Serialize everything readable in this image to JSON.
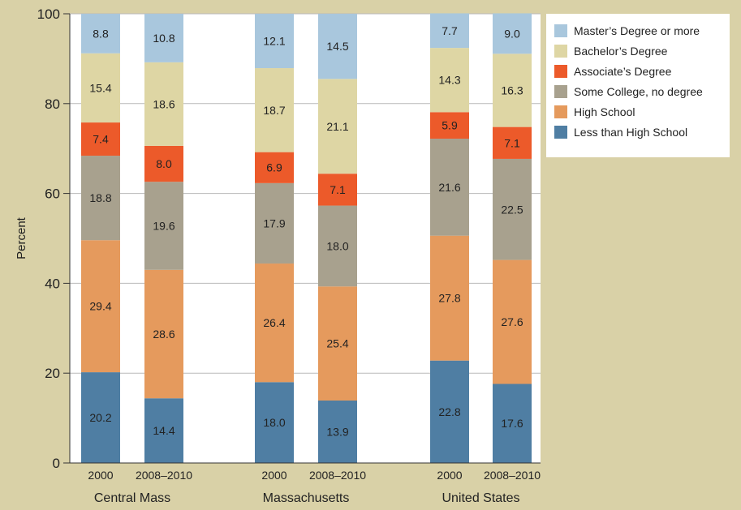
{
  "chart_data": {
    "type": "bar",
    "stacked": true,
    "ylabel": "Percent",
    "ylim": [
      0,
      100
    ],
    "yticks": [
      "0",
      "20",
      "40",
      "60",
      "80",
      "100"
    ],
    "grid": true,
    "legend_position": "top-right",
    "groups": [
      "Central Mass",
      "Massachusetts",
      "United States"
    ],
    "categories": [
      "2000",
      "2008–2010",
      "2000",
      "2008–2010",
      "2000",
      "2008–2010"
    ],
    "category_group": [
      0,
      0,
      1,
      1,
      2,
      2
    ],
    "series": [
      {
        "name": "Less than High School",
        "color": "#4f7ea3",
        "values": [
          20.2,
          14.4,
          18.0,
          13.9,
          22.8,
          17.6
        ],
        "labels": [
          "20.2",
          "14.4",
          "18.0",
          "13.9",
          "22.8",
          "17.6"
        ]
      },
      {
        "name": "High School",
        "color": "#e59a5d",
        "values": [
          29.4,
          28.6,
          26.4,
          25.4,
          27.8,
          27.6
        ],
        "labels": [
          "29.4",
          "28.6",
          "26.4",
          "25.4",
          "27.8",
          "27.6"
        ]
      },
      {
        "name": "Some College, no degree",
        "color": "#a8a18e",
        "values": [
          18.8,
          19.6,
          17.9,
          18.0,
          21.6,
          22.5
        ],
        "labels": [
          "18.8",
          "19.6",
          "17.9",
          "18.0",
          "21.6",
          "22.5"
        ]
      },
      {
        "name": "Associate’s Degree",
        "color": "#ec5a2a",
        "values": [
          7.4,
          8.0,
          6.9,
          7.1,
          5.9,
          7.1
        ],
        "labels": [
          "7.4",
          "8.0",
          "6.9",
          "7.1",
          "5.9",
          "7.1"
        ]
      },
      {
        "name": "Bachelor’s Degree",
        "color": "#ded6a4",
        "values": [
          15.4,
          18.6,
          18.7,
          21.1,
          14.3,
          16.3
        ],
        "labels": [
          "15.4",
          "18.6",
          "18.7",
          "21.1",
          "14.3",
          "16.3"
        ]
      },
      {
        "name": "Master’s Degree or more",
        "color": "#a9c7dd",
        "values": [
          8.8,
          10.8,
          12.1,
          14.5,
          7.7,
          9.0
        ],
        "labels": [
          "8.8",
          "10.8",
          "12.1",
          "14.5",
          "7.7",
          "9.0"
        ]
      }
    ],
    "legend_order": [
      5,
      4,
      3,
      2,
      1,
      0
    ]
  }
}
